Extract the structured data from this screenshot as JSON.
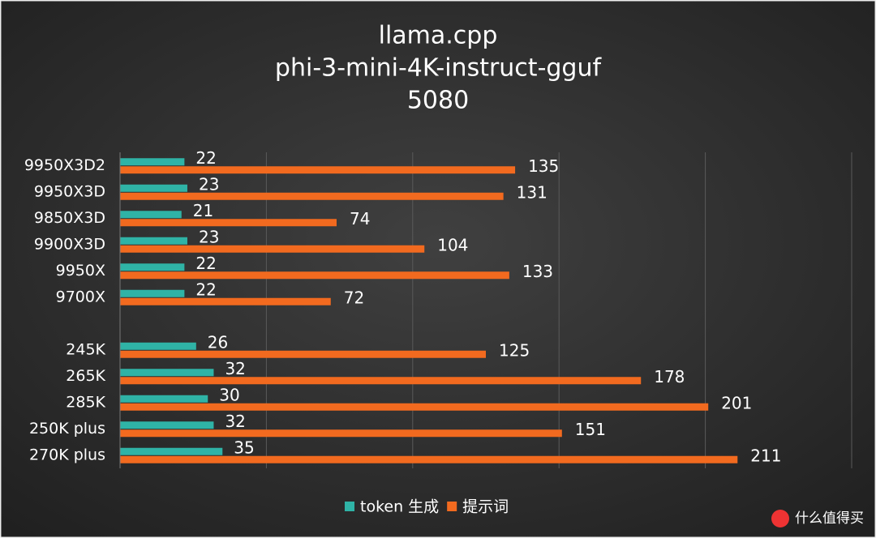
{
  "chart_data": {
    "type": "hbar",
    "title": [
      "llama.cpp",
      "phi-3-mini-4K-instruct-gguf",
      "5080"
    ],
    "categories": [
      "9950X3D2",
      "9950X3D",
      "9850X3D",
      "9900X3D",
      "9950X",
      "9700X",
      null,
      "245K",
      "265K",
      "285K",
      "250K plus",
      "270K plus"
    ],
    "series": [
      {
        "name": "token 生成",
        "color": "#2fb3a6",
        "values": [
          22,
          23,
          21,
          23,
          22,
          22,
          null,
          26,
          32,
          30,
          32,
          35
        ]
      },
      {
        "name": "提示词",
        "color": "#f26a1f",
        "values": [
          135,
          131,
          74,
          104,
          133,
          72,
          null,
          125,
          178,
          201,
          151,
          211
        ]
      }
    ],
    "xlim": [
      0,
      250
    ],
    "xticks": [
      0,
      50,
      100,
      150,
      200,
      250
    ],
    "grid": true,
    "legend": "bottom"
  },
  "watermark": "什么值得买"
}
